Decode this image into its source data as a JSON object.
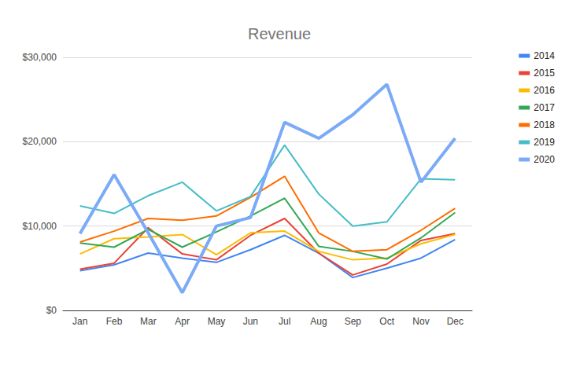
{
  "chart_data": {
    "type": "line",
    "title": "Revenue",
    "categories": [
      "Jan",
      "Feb",
      "Mar",
      "Apr",
      "May",
      "Jun",
      "Jul",
      "Aug",
      "Sep",
      "Oct",
      "Nov",
      "Dec"
    ],
    "series": [
      {
        "name": "2014",
        "color": "#4285f4",
        "values": [
          4700,
          5400,
          6800,
          6200,
          5700,
          7200,
          8900,
          6800,
          3900,
          5000,
          6200,
          8400
        ]
      },
      {
        "name": "2015",
        "color": "#ea4335",
        "values": [
          4900,
          5600,
          9800,
          6700,
          6000,
          8900,
          10900,
          6800,
          4200,
          5500,
          8300,
          9100
        ]
      },
      {
        "name": "2016",
        "color": "#fbbc04",
        "values": [
          6700,
          8500,
          8700,
          9000,
          6600,
          9200,
          9400,
          7000,
          6000,
          6200,
          7900,
          9000
        ]
      },
      {
        "name": "2017",
        "color": "#34a853",
        "values": [
          8000,
          7500,
          9600,
          7500,
          9300,
          11200,
          13300,
          7600,
          7000,
          6100,
          8600,
          11600
        ]
      },
      {
        "name": "2018",
        "color": "#ff6d01",
        "values": [
          8100,
          9400,
          10900,
          10700,
          11200,
          13400,
          15900,
          9200,
          7000,
          7200,
          9500,
          12100
        ]
      },
      {
        "name": "2019",
        "color": "#46bdc6",
        "values": [
          12400,
          11500,
          13600,
          15200,
          11800,
          13500,
          19600,
          13800,
          10000,
          10500,
          15600,
          15500
        ]
      },
      {
        "name": "2020",
        "color": "#7baaf7",
        "line_style": "thick",
        "values": [
          9100,
          16100,
          9200,
          2100,
          10000,
          11000,
          22300,
          20400,
          23200,
          26800,
          15200,
          20400
        ]
      }
    ],
    "ylim": [
      0,
      30000
    ],
    "yticks": [
      {
        "value": 0,
        "label": "$0"
      },
      {
        "value": 10000,
        "label": "$10,000"
      },
      {
        "value": 20000,
        "label": "$20,000"
      },
      {
        "value": 30000,
        "label": "$30,000"
      }
    ],
    "grid": true,
    "legend": "right"
  }
}
